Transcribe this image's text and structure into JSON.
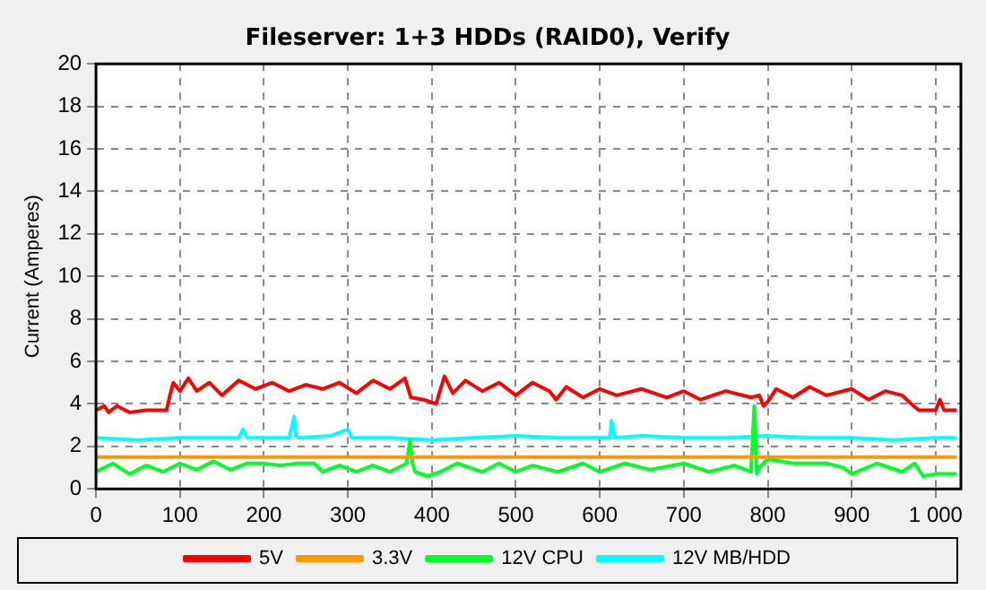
{
  "chart_data": {
    "type": "line",
    "title": "Fileserver: 1+3 HDDs (RAID0), Verify",
    "ylabel": "Current (Amperes)",
    "xlim": [
      0,
      1030
    ],
    "xticks": [
      0,
      100,
      200,
      300,
      400,
      500,
      600,
      700,
      800,
      900,
      {
        "value": 1000,
        "label": "1 000"
      }
    ],
    "ylim": [
      0,
      20
    ],
    "yticks": [
      0,
      2,
      4,
      6,
      8,
      10,
      12,
      14,
      16,
      18,
      20
    ],
    "grid": true,
    "legend": "bottom",
    "marker": "none",
    "series": [
      {
        "name": "5V",
        "color": "#ff0000",
        "x": [
          0,
          10,
          15,
          25,
          40,
          60,
          84,
          88,
          92,
          100,
          110,
          120,
          135,
          150,
          170,
          190,
          210,
          230,
          250,
          270,
          290,
          310,
          330,
          350,
          368,
          375,
          390,
          405,
          415,
          425,
          440,
          460,
          480,
          500,
          520,
          540,
          548,
          560,
          580,
          600,
          620,
          650,
          680,
          700,
          720,
          750,
          780,
          790,
          795,
          800,
          810,
          830,
          850,
          870,
          900,
          920,
          940,
          960,
          968,
          980,
          1000,
          1005,
          1010,
          1025
        ],
        "values": [
          3.7,
          3.9,
          3.6,
          3.9,
          3.6,
          3.7,
          3.7,
          4.4,
          5.0,
          4.6,
          5.2,
          4.6,
          5.0,
          4.4,
          5.1,
          4.7,
          5.0,
          4.6,
          4.9,
          4.7,
          5.0,
          4.5,
          5.1,
          4.7,
          5.2,
          4.3,
          4.2,
          4.0,
          5.3,
          4.5,
          5.1,
          4.6,
          5.0,
          4.4,
          5.0,
          4.6,
          4.2,
          4.8,
          4.3,
          4.7,
          4.4,
          4.7,
          4.3,
          4.6,
          4.2,
          4.6,
          4.3,
          4.4,
          3.9,
          4.1,
          4.7,
          4.3,
          4.8,
          4.4,
          4.7,
          4.2,
          4.6,
          4.4,
          4.1,
          3.7,
          3.7,
          4.2,
          3.7,
          3.7
        ]
      },
      {
        "name": "3.3V",
        "color": "#ff9900",
        "x": [
          0,
          1025
        ],
        "values": [
          1.5,
          1.5
        ]
      },
      {
        "name": "12V CPU",
        "color": "#00ff22",
        "x": [
          0,
          20,
          40,
          60,
          80,
          100,
          120,
          140,
          160,
          180,
          200,
          220,
          240,
          260,
          270,
          290,
          310,
          330,
          350,
          370,
          374,
          377,
          380,
          395,
          410,
          430,
          460,
          480,
          500,
          520,
          550,
          580,
          600,
          630,
          660,
          700,
          730,
          760,
          780,
          784,
          787,
          790,
          800,
          830,
          870,
          890,
          900,
          930,
          960,
          975,
          985,
          1000,
          1025
        ],
        "values": [
          0.8,
          1.2,
          0.7,
          1.1,
          0.8,
          1.2,
          0.9,
          1.3,
          0.9,
          1.2,
          1.2,
          1.1,
          1.2,
          1.2,
          0.8,
          1.1,
          0.8,
          1.1,
          0.8,
          1.2,
          2.3,
          1.2,
          0.8,
          0.6,
          0.8,
          1.2,
          0.8,
          1.2,
          0.8,
          1.1,
          0.8,
          1.2,
          0.8,
          1.2,
          0.9,
          1.2,
          0.8,
          1.1,
          0.8,
          3.9,
          0.7,
          1.0,
          1.4,
          1.2,
          1.2,
          1.0,
          0.7,
          1.2,
          0.8,
          1.2,
          0.6,
          0.7,
          0.7
        ]
      },
      {
        "name": "12V MB/HDD",
        "color": "#00ffff",
        "x": [
          0,
          50,
          100,
          150,
          170,
          175,
          180,
          230,
          236,
          238,
          242,
          280,
          300,
          305,
          350,
          400,
          450,
          500,
          550,
          600,
          612,
          614,
          618,
          650,
          700,
          750,
          800,
          850,
          900,
          950,
          1000,
          1025
        ],
        "values": [
          2.4,
          2.3,
          2.4,
          2.4,
          2.4,
          2.8,
          2.4,
          2.4,
          3.4,
          2.5,
          2.4,
          2.5,
          2.8,
          2.4,
          2.4,
          2.3,
          2.4,
          2.5,
          2.4,
          2.4,
          2.4,
          3.2,
          2.4,
          2.5,
          2.4,
          2.4,
          2.5,
          2.4,
          2.4,
          2.3,
          2.4,
          2.4
        ]
      }
    ]
  }
}
